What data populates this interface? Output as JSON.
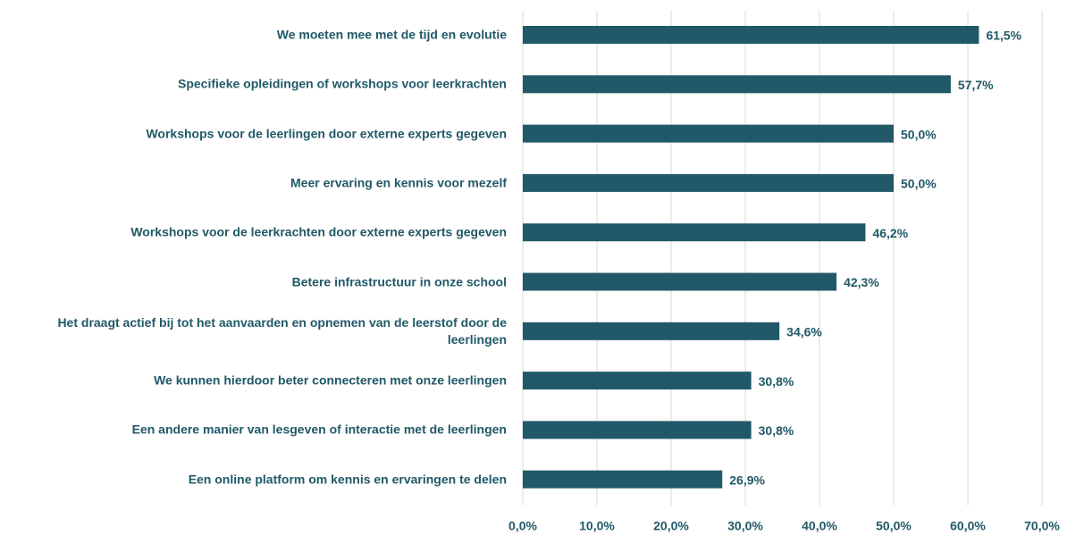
{
  "chart_data": {
    "type": "hbar",
    "categories": [
      "We moeten mee met de tijd en evolutie",
      "Specifieke opleidingen of workshops voor leerkrachten",
      "Workshops voor de leerlingen door externe experts gegeven",
      "Meer ervaring en kennis voor mezelf",
      "Workshops voor de leerkrachten door externe experts gegeven",
      "Betere infrastructuur in onze school",
      "Het draagt actief bij tot het aanvaarden en opnemen van de leerstof door de leerlingen",
      "We kunnen hierdoor beter connecteren met onze leerlingen",
      "Een andere manier van lesgeven of interactie met de leerlingen",
      "Een online platform om kennis en ervaringen te delen"
    ],
    "values": [
      61.5,
      57.7,
      50.0,
      50.0,
      46.2,
      42.3,
      34.6,
      30.8,
      30.8,
      26.9
    ],
    "value_labels": [
      "61,5%",
      "57,7%",
      "50,0%",
      "50,0%",
      "46,2%",
      "42,3%",
      "34,6%",
      "30,8%",
      "30,8%",
      "26,9%"
    ],
    "color": "#215968",
    "xlim": [
      0,
      70
    ],
    "xticks": [
      {
        "value": 0,
        "label": "0,0%"
      },
      {
        "value": 10,
        "label": "10,0%"
      },
      {
        "value": 20,
        "label": "20,0%"
      },
      {
        "value": 30,
        "label": "30,0%"
      },
      {
        "value": 40,
        "label": "40,0%"
      },
      {
        "value": 50,
        "label": "50,0%"
      },
      {
        "value": 60,
        "label": "60,0%"
      },
      {
        "value": 70,
        "label": "70,0%"
      }
    ],
    "grid": true
  }
}
